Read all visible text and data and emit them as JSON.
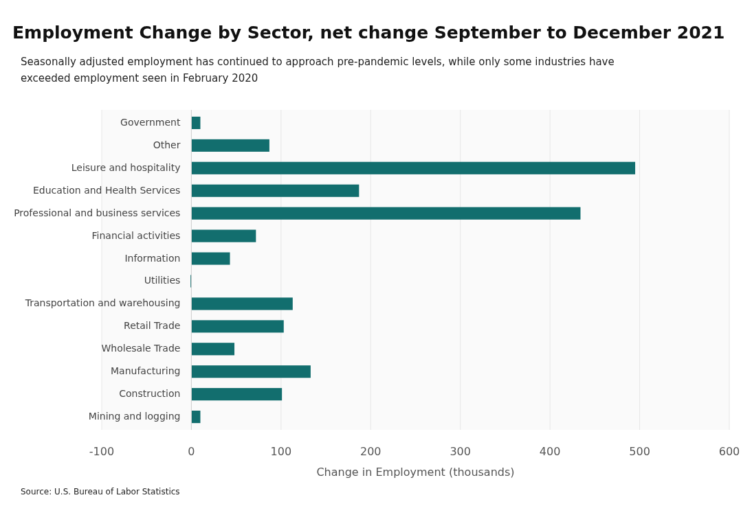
{
  "chart_data": {
    "type": "bar",
    "orientation": "horizontal",
    "title": "Employment Change by Sector, net change September to December 2021",
    "subtitle": "Seasonally adjusted employment has continued to approach pre-pandemic levels, while only some industries have exceeded employment seen in February 2020",
    "categories": [
      "Government",
      "Other",
      "Leisure and hospitality",
      "Education and Health Services",
      "Professional and business services",
      "Financial activities",
      "Information",
      "Utilities",
      "Transportation and warehousing",
      "Retail Trade",
      "Wholesale Trade",
      "Manufacturing",
      "Construction",
      "Mining and logging"
    ],
    "values": [
      10,
      87,
      495,
      187,
      434,
      72,
      43,
      -1,
      113,
      103,
      48,
      133,
      101,
      10
    ],
    "color": "#126e6e",
    "xlabel": "Change in Employment (thousands)",
    "xlim": [
      -100,
      600
    ],
    "xticks": [
      -100,
      0,
      100,
      200,
      300,
      400,
      500,
      600
    ],
    "grid": "x",
    "annotations": [
      "Source: U.S. Bureau of Labor Statistics"
    ]
  }
}
